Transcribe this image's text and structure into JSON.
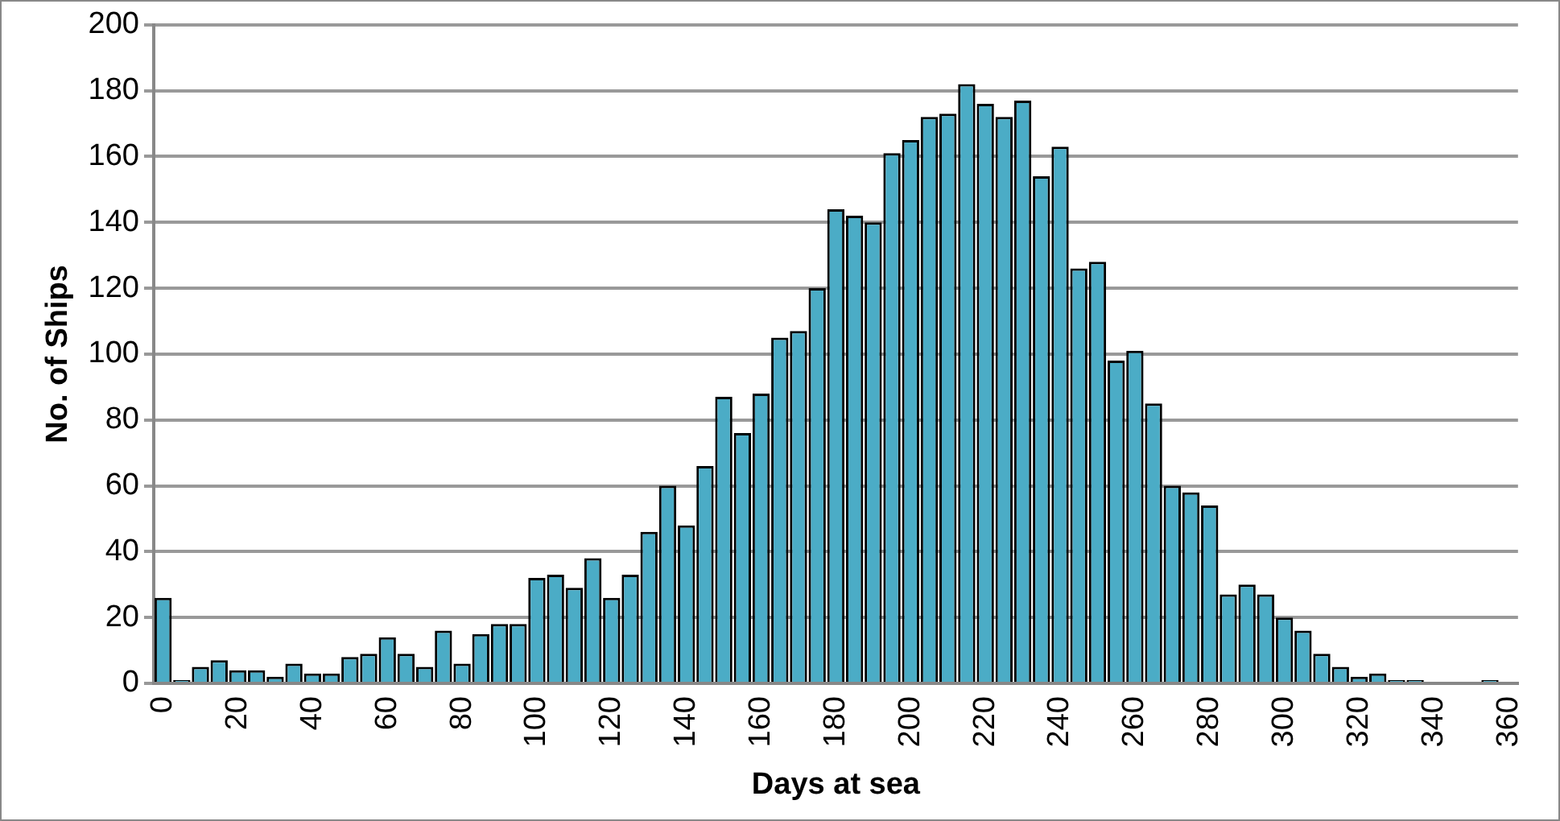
{
  "chart_data": {
    "type": "bar",
    "xlabel": "Days at sea",
    "ylabel": "No. of Ships",
    "categories": [
      "0",
      null,
      null,
      null,
      "20",
      null,
      null,
      null,
      "40",
      null,
      null,
      null,
      "60",
      null,
      null,
      null,
      "80",
      null,
      null,
      null,
      "100",
      null,
      null,
      null,
      "120",
      null,
      null,
      null,
      "140",
      null,
      null,
      null,
      "160",
      null,
      null,
      null,
      "180",
      null,
      null,
      null,
      "200",
      null,
      null,
      null,
      "220",
      null,
      null,
      null,
      "240",
      null,
      null,
      null,
      "260",
      null,
      null,
      null,
      "280",
      null,
      null,
      null,
      "300",
      null,
      null,
      null,
      "320",
      null,
      null,
      null,
      "340",
      null,
      null,
      null,
      "360"
    ],
    "values": [
      26,
      1,
      5,
      7,
      4,
      4,
      2,
      6,
      3,
      3,
      8,
      9,
      14,
      9,
      5,
      16,
      6,
      15,
      18,
      18,
      32,
      33,
      29,
      38,
      26,
      33,
      46,
      60,
      48,
      66,
      87,
      76,
      88,
      105,
      107,
      120,
      144,
      142,
      140,
      161,
      165,
      172,
      173,
      182,
      176,
      172,
      177,
      154,
      163,
      126,
      128,
      98,
      101,
      85,
      60,
      58,
      54,
      27,
      30,
      27,
      20,
      16,
      9,
      5,
      2,
      3,
      1,
      1,
      0,
      0,
      0,
      1,
      0
    ],
    "color": "#4bacc6",
    "ylim": [
      0,
      200
    ],
    "yticks": [
      0,
      20,
      40,
      60,
      80,
      100,
      120,
      140,
      160,
      180,
      200
    ],
    "grid": "y",
    "legend": false
  }
}
